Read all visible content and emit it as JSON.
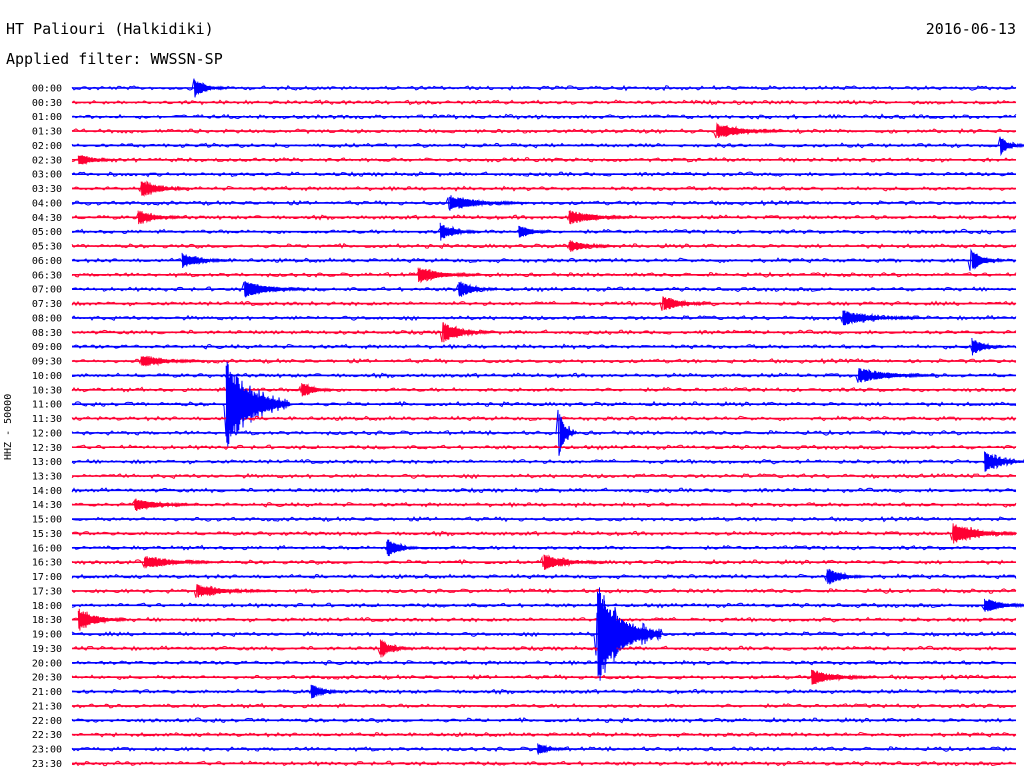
{
  "header": {
    "station": "HT Paliouri (Halkidiki)",
    "date": "2016-06-13",
    "filter": "Applied filter: WWSSN-SP"
  },
  "chart_data": {
    "type": "helicorder",
    "ylabel": "HHZ - 50000",
    "colors": {
      "even": "#0000ff",
      "odd": "#ff0033"
    },
    "rows": [
      "00:00",
      "00:30",
      "01:00",
      "01:30",
      "02:00",
      "02:30",
      "03:00",
      "03:30",
      "04:00",
      "04:30",
      "05:00",
      "05:30",
      "06:00",
      "06:30",
      "07:00",
      "07:30",
      "08:00",
      "08:30",
      "09:00",
      "09:30",
      "10:00",
      "10:30",
      "11:00",
      "11:30",
      "12:00",
      "12:30",
      "13:00",
      "13:30",
      "14:00",
      "14:30",
      "15:00",
      "15:30",
      "16:00",
      "16:30",
      "17:00",
      "17:30",
      "18:00",
      "18:30",
      "19:00",
      "19:30",
      "20:00",
      "20:30",
      "21:00",
      "21:30",
      "22:00",
      "22:30",
      "23:00",
      "23:30"
    ],
    "x_range_minutes": [
      0,
      30
    ],
    "events": [
      {
        "row": 0,
        "minute": 3.9,
        "amp": 0.7,
        "dur": 1.0
      },
      {
        "row": 3,
        "minute": 20.5,
        "amp": 0.6,
        "dur": 2.2
      },
      {
        "row": 4,
        "minute": 29.5,
        "amp": 0.7,
        "dur": 0.8
      },
      {
        "row": 5,
        "minute": 0.2,
        "amp": 0.5,
        "dur": 1.2
      },
      {
        "row": 7,
        "minute": 2.2,
        "amp": 0.7,
        "dur": 1.5
      },
      {
        "row": 8,
        "minute": 12.0,
        "amp": 0.6,
        "dur": 2.5
      },
      {
        "row": 9,
        "minute": 2.1,
        "amp": 0.6,
        "dur": 1.5
      },
      {
        "row": 9,
        "minute": 15.8,
        "amp": 0.6,
        "dur": 2.0
      },
      {
        "row": 10,
        "minute": 11.7,
        "amp": 0.7,
        "dur": 1.2
      },
      {
        "row": 10,
        "minute": 14.2,
        "amp": 0.6,
        "dur": 1.0
      },
      {
        "row": 11,
        "minute": 15.8,
        "amp": 0.5,
        "dur": 1.5
      },
      {
        "row": 12,
        "minute": 3.5,
        "amp": 0.6,
        "dur": 1.5
      },
      {
        "row": 12,
        "minute": 28.6,
        "amp": 0.8,
        "dur": 1.0
      },
      {
        "row": 13,
        "minute": 11.0,
        "amp": 0.6,
        "dur": 2.0
      },
      {
        "row": 14,
        "minute": 5.5,
        "amp": 0.7,
        "dur": 2.0
      },
      {
        "row": 14,
        "minute": 12.3,
        "amp": 0.7,
        "dur": 1.2
      },
      {
        "row": 15,
        "minute": 18.8,
        "amp": 0.6,
        "dur": 1.5
      },
      {
        "row": 16,
        "minute": 24.5,
        "amp": 0.6,
        "dur": 2.5
      },
      {
        "row": 17,
        "minute": 11.8,
        "amp": 0.8,
        "dur": 1.5
      },
      {
        "row": 18,
        "minute": 28.6,
        "amp": 0.7,
        "dur": 1.0
      },
      {
        "row": 19,
        "minute": 2.2,
        "amp": 0.5,
        "dur": 2.0
      },
      {
        "row": 20,
        "minute": 25.0,
        "amp": 0.6,
        "dur": 2.5
      },
      {
        "row": 21,
        "minute": 7.3,
        "amp": 0.7,
        "dur": 1.0
      },
      {
        "row": 22,
        "minute": 4.9,
        "amp": 3.5,
        "dur": 2.0
      },
      {
        "row": 24,
        "minute": 15.5,
        "amp": 1.6,
        "dur": 0.5
      },
      {
        "row": 26,
        "minute": 29.0,
        "amp": 0.8,
        "dur": 1.5
      },
      {
        "row": 29,
        "minute": 2.0,
        "amp": 0.5,
        "dur": 2.0
      },
      {
        "row": 31,
        "minute": 28.0,
        "amp": 0.9,
        "dur": 2.0
      },
      {
        "row": 32,
        "minute": 10.0,
        "amp": 0.8,
        "dur": 1.0
      },
      {
        "row": 33,
        "minute": 2.3,
        "amp": 0.5,
        "dur": 2.5
      },
      {
        "row": 33,
        "minute": 15.0,
        "amp": 0.6,
        "dur": 2.0
      },
      {
        "row": 34,
        "minute": 24.0,
        "amp": 0.7,
        "dur": 1.2
      },
      {
        "row": 35,
        "minute": 4.0,
        "amp": 0.5,
        "dur": 2.5
      },
      {
        "row": 36,
        "minute": 29.0,
        "amp": 0.6,
        "dur": 1.5
      },
      {
        "row": 37,
        "minute": 0.2,
        "amp": 0.9,
        "dur": 1.5
      },
      {
        "row": 38,
        "minute": 16.7,
        "amp": 4.0,
        "dur": 2.0
      },
      {
        "row": 39,
        "minute": 9.8,
        "amp": 0.7,
        "dur": 1.0
      },
      {
        "row": 41,
        "minute": 23.5,
        "amp": 0.6,
        "dur": 2.0
      },
      {
        "row": 42,
        "minute": 7.6,
        "amp": 0.6,
        "dur": 1.0
      },
      {
        "row": 46,
        "minute": 14.8,
        "amp": 0.5,
        "dur": 1.0
      }
    ]
  }
}
